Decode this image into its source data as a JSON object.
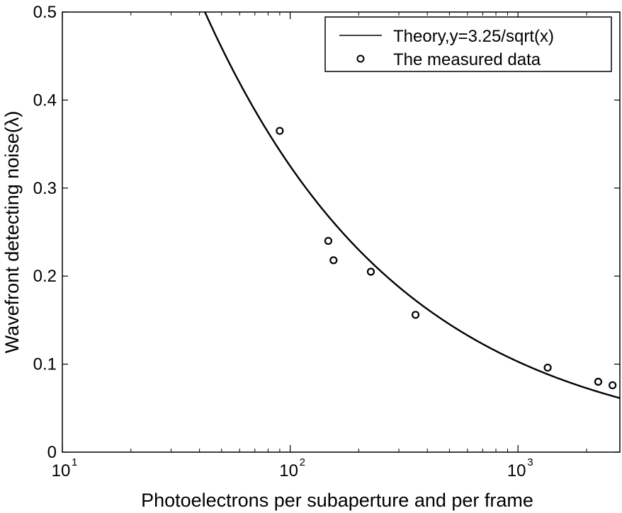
{
  "chart_data": {
    "type": "scatter",
    "title": "",
    "xlabel": "Photoelectrons per subaperture and per frame",
    "ylabel": "Wavefront detecting noise(λ)",
    "xscale": "log",
    "xlim": [
      10,
      2800
    ],
    "ylim": [
      0,
      0.5
    ],
    "x_ticks": [
      {
        "value": 10,
        "base": "10",
        "exp": "1"
      },
      {
        "value": 100,
        "base": "10",
        "exp": "2"
      },
      {
        "value": 1000,
        "base": "10",
        "exp": "3"
      }
    ],
    "y_ticks": [
      "0",
      "0.1",
      "0.2",
      "0.3",
      "0.4",
      "0.5"
    ],
    "y_tick_values": [
      0,
      0.1,
      0.2,
      0.3,
      0.4,
      0.5
    ],
    "series": [
      {
        "name": "Theory,y=3.25/sqrt(x)",
        "kind": "line",
        "formula": "y=3.25/sqrt(x)",
        "coefficient": 3.25,
        "color": "#000000"
      },
      {
        "name": "The measured data",
        "kind": "scatter",
        "marker": "circle",
        "color": "#000000",
        "x": [
          90,
          147,
          155,
          226,
          355,
          1350,
          2250,
          2600
        ],
        "y": [
          0.365,
          0.24,
          0.218,
          0.205,
          0.156,
          0.096,
          0.08,
          0.076
        ]
      }
    ],
    "grid": false,
    "legend_position": "top-right"
  }
}
